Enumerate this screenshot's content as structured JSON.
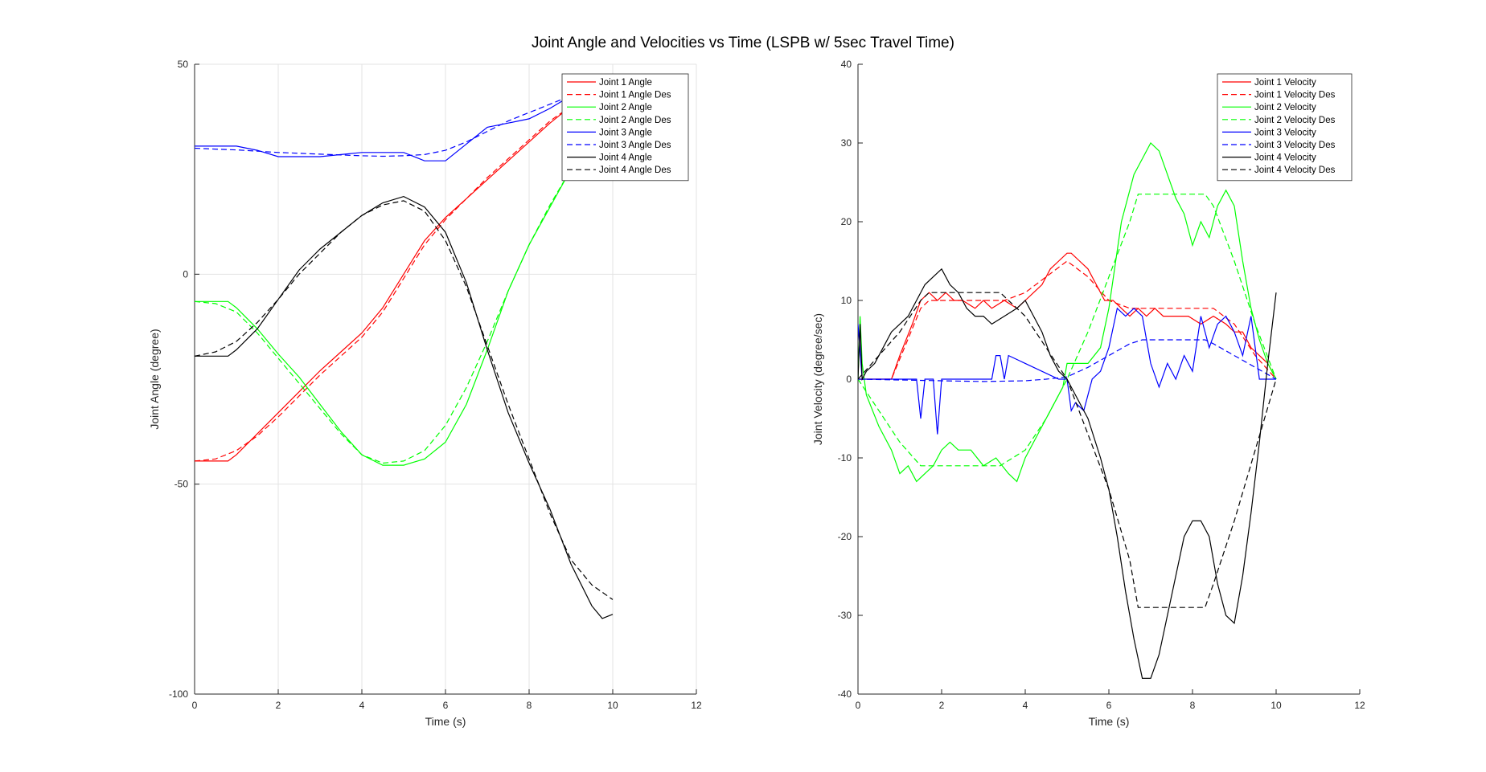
{
  "figure": {
    "title": "Joint Angle and Velocities vs Time (LSPB w/ 5sec Travel Time)"
  },
  "chart_data": [
    {
      "type": "line",
      "xlabel": "Time (s)",
      "ylabel": "Joint Angle (degree)",
      "xlim": [
        0,
        12
      ],
      "ylim": [
        -100,
        50
      ],
      "xticks": [
        "0",
        "2",
        "4",
        "6",
        "8",
        "10",
        "12"
      ],
      "yticks": [
        "-100",
        "-50",
        "0",
        "50"
      ],
      "grid": true,
      "legend_position": "top-right",
      "series": [
        {
          "name": "Joint 1 Angle",
          "color": "#ff0000",
          "dash": "solid",
          "x": [
            0,
            0.8,
            1.0,
            1.5,
            2.0,
            2.5,
            3.0,
            3.5,
            4.0,
            4.5,
            5.0,
            5.5,
            6.0,
            6.5,
            7.0,
            7.5,
            8.0,
            8.5,
            9.0
          ],
          "y": [
            -44.5,
            -44.5,
            -43,
            -38,
            -33,
            -28,
            -23,
            -18.5,
            -14,
            -8,
            0,
            8,
            13.5,
            18,
            22.5,
            27,
            31.5,
            36,
            40
          ]
        },
        {
          "name": "Joint 1 Angle Des",
          "color": "#ff0000",
          "dash": "dashed",
          "x": [
            0,
            0.5,
            1.0,
            1.5,
            2.0,
            2.5,
            3.0,
            3.5,
            4.0,
            4.5,
            5.0,
            5.5,
            6.0,
            6.5,
            7.0,
            7.5,
            8.0,
            8.5,
            9.0
          ],
          "y": [
            -44.5,
            -44,
            -42,
            -38.5,
            -34,
            -29,
            -24,
            -19.5,
            -15,
            -9,
            -1,
            7,
            13,
            18,
            23,
            27.5,
            32,
            36.5,
            40
          ]
        },
        {
          "name": "Joint 2 Angle",
          "color": "#00ff00",
          "dash": "solid",
          "x": [
            0,
            0.8,
            1.0,
            1.5,
            2.0,
            2.5,
            3.0,
            3.5,
            4.0,
            4.5,
            5.0,
            5.5,
            6.0,
            6.5,
            7.0,
            7.5,
            8.0,
            8.5,
            9.0
          ],
          "y": [
            -6.5,
            -6.5,
            -8,
            -13,
            -19,
            -24.5,
            -31,
            -37.5,
            -43,
            -45.5,
            -45.5,
            -44,
            -40,
            -31,
            -18,
            -4,
            7,
            16,
            25
          ]
        },
        {
          "name": "Joint 2 Angle Des",
          "color": "#00ff00",
          "dash": "dashed",
          "x": [
            0,
            0.5,
            1.0,
            1.5,
            2.0,
            2.5,
            3.0,
            3.5,
            4.0,
            4.5,
            5.0,
            5.5,
            6.0,
            6.5,
            7.0,
            7.5,
            8.0,
            8.5,
            9.0
          ],
          "y": [
            -6.5,
            -7,
            -9,
            -14,
            -20,
            -26,
            -32,
            -38,
            -43,
            -45,
            -44.5,
            -42,
            -36,
            -27,
            -16,
            -4,
            7,
            16.5,
            25
          ]
        },
        {
          "name": "Joint 3 Angle",
          "color": "#0000ff",
          "dash": "solid",
          "x": [
            0,
            0.5,
            1.0,
            1.5,
            2.0,
            2.5,
            3.0,
            3.5,
            4.0,
            4.5,
            5.0,
            5.5,
            6.0,
            6.5,
            7.0,
            7.5,
            8.0,
            8.5,
            9.0
          ],
          "y": [
            30.5,
            30.5,
            30.5,
            29.5,
            28,
            28,
            28,
            28.5,
            29,
            29,
            29,
            27,
            27,
            31,
            35,
            36,
            37,
            39.5,
            42.5
          ]
        },
        {
          "name": "Joint 3 Angle Des",
          "color": "#0000ff",
          "dash": "dashed",
          "x": [
            0,
            0.5,
            1.0,
            1.5,
            2.0,
            2.5,
            3.0,
            3.5,
            4.0,
            4.5,
            5.0,
            5.5,
            6.0,
            6.5,
            7.0,
            7.5,
            8.0,
            8.5,
            9.0
          ],
          "y": [
            30,
            29.8,
            29.6,
            29.3,
            29,
            28.8,
            28.6,
            28.4,
            28.2,
            28.1,
            28.2,
            28.5,
            29.5,
            31.5,
            34,
            36.5,
            38.5,
            40.5,
            42.5
          ]
        },
        {
          "name": "Joint 4 Angle",
          "color": "#000000",
          "dash": "solid",
          "x": [
            0,
            0.8,
            1.0,
            1.5,
            2.0,
            2.5,
            3.0,
            3.5,
            4.0,
            4.5,
            5.0,
            5.5,
            6.0,
            6.5,
            7.0,
            7.5,
            8.0,
            8.5,
            9.0,
            9.5,
            9.75,
            10.0
          ],
          "y": [
            -19.5,
            -19.5,
            -18,
            -13,
            -6,
            1,
            6,
            10,
            14,
            17,
            18.5,
            16,
            10,
            -2,
            -18,
            -33,
            -45,
            -56,
            -69,
            -79,
            -82,
            -81
          ]
        },
        {
          "name": "Joint 4 Angle Des",
          "color": "#000000",
          "dash": "dashed",
          "x": [
            0,
            0.5,
            1.0,
            1.5,
            2.0,
            2.5,
            3.0,
            3.5,
            4.0,
            4.5,
            5.0,
            5.5,
            6.0,
            6.5,
            7.0,
            7.5,
            8.0,
            8.5,
            9.0,
            9.5,
            10.0
          ],
          "y": [
            -19.5,
            -18.5,
            -16,
            -11.5,
            -6,
            0,
            5,
            10,
            14,
            16.5,
            17.5,
            15,
            8,
            -3,
            -17,
            -31,
            -44,
            -57,
            -68,
            -74,
            -77.5
          ]
        }
      ]
    },
    {
      "type": "line",
      "xlabel": "Time (s)",
      "ylabel": "Joint Velocity (degree/sec)",
      "xlim": [
        0,
        12
      ],
      "ylim": [
        -40,
        40
      ],
      "xticks": [
        "0",
        "2",
        "4",
        "6",
        "8",
        "10",
        "12"
      ],
      "yticks": [
        "-40",
        "-30",
        "-20",
        "-10",
        "0",
        "10",
        "20",
        "30",
        "40"
      ],
      "grid": false,
      "legend_position": "top-right",
      "series": [
        {
          "name": "Joint 1 Velocity",
          "color": "#ff0000",
          "dash": "solid",
          "x": [
            0,
            0.8,
            1.0,
            1.3,
            1.5,
            1.7,
            1.9,
            2.1,
            2.3,
            2.5,
            2.8,
            3.0,
            3.2,
            3.5,
            3.8,
            4.0,
            4.2,
            4.4,
            4.6,
            4.8,
            5.0,
            5.1,
            5.3,
            5.5,
            5.7,
            5.9,
            6.1,
            6.3,
            6.5,
            6.7,
            6.9,
            7.1,
            7.3,
            7.6,
            7.9,
            8.2,
            8.5,
            8.8,
            9.0,
            9.2,
            9.4,
            9.6,
            9.8,
            10.0
          ],
          "y": [
            0,
            0,
            3,
            7,
            10,
            11,
            10,
            11,
            10,
            10,
            9,
            10,
            9,
            10,
            9,
            10,
            11,
            12,
            14,
            15,
            16,
            16,
            15,
            14,
            12,
            10,
            10,
            9,
            8,
            9,
            8,
            9,
            8,
            8,
            8,
            7,
            8,
            7,
            6,
            6,
            4,
            3,
            2,
            0
          ]
        },
        {
          "name": "Joint 1 Velocity Des",
          "color": "#ff0000",
          "dash": "dashed",
          "x": [
            0,
            0.8,
            1.5,
            1.7,
            2.5,
            3.5,
            4.0,
            4.5,
            5.0,
            5.5,
            6.0,
            6.5,
            7.0,
            7.5,
            8.0,
            8.5,
            9.0,
            9.5,
            10.0
          ],
          "y": [
            0,
            0,
            9,
            10,
            10,
            10,
            11,
            13,
            15,
            13,
            10,
            9,
            9,
            9,
            9,
            9,
            7,
            3,
            0
          ]
        },
        {
          "name": "Joint 2 Velocity",
          "color": "#00ff00",
          "dash": "solid",
          "x": [
            0,
            0.05,
            0.1,
            0.2,
            0.5,
            0.8,
            1.0,
            1.2,
            1.4,
            1.6,
            1.8,
            2.0,
            2.2,
            2.4,
            2.7,
            3.0,
            3.3,
            3.6,
            3.8,
            4.0,
            4.3,
            4.6,
            4.9,
            5.0,
            5.2,
            5.5,
            5.8,
            6.0,
            6.3,
            6.6,
            6.8,
            7.0,
            7.2,
            7.4,
            7.6,
            7.8,
            8.0,
            8.2,
            8.4,
            8.6,
            8.8,
            9.0,
            9.2,
            9.4,
            9.6,
            9.8,
            10.0
          ],
          "y": [
            0,
            8,
            2,
            -2,
            -6,
            -9,
            -12,
            -11,
            -13,
            -12,
            -11,
            -9,
            -8,
            -9,
            -9,
            -11,
            -10,
            -12,
            -13,
            -10,
            -7,
            -4,
            -1,
            2,
            2,
            2,
            4,
            9,
            20,
            26,
            28,
            30,
            29,
            26,
            23,
            21,
            17,
            20,
            18,
            22,
            24,
            22,
            15,
            9,
            5,
            2,
            0
          ]
        },
        {
          "name": "Joint 2 Velocity Des",
          "color": "#00ff00",
          "dash": "dashed",
          "x": [
            0,
            0.5,
            1.0,
            1.5,
            1.7,
            3.0,
            3.4,
            4.0,
            4.5,
            5.0,
            5.5,
            6.0,
            6.5,
            6.7,
            8.3,
            8.5,
            9.0,
            9.5,
            10.0
          ],
          "y": [
            0,
            -4,
            -8,
            -11,
            -11,
            -11,
            -11,
            -9,
            -5,
            0,
            6,
            13,
            20,
            23.5,
            23.5,
            22,
            15,
            7,
            0
          ]
        },
        {
          "name": "Joint 3 Velocity",
          "color": "#0000ff",
          "dash": "solid",
          "x": [
            0,
            0.1,
            1.4,
            1.5,
            1.6,
            1.8,
            1.9,
            2.0,
            3.2,
            3.3,
            3.4,
            3.5,
            3.6,
            4.8,
            5.0,
            5.1,
            5.2,
            5.4,
            5.6,
            5.8,
            6.0,
            6.2,
            6.4,
            6.6,
            6.8,
            7.0,
            7.2,
            7.4,
            7.6,
            7.8,
            8.0,
            8.2,
            8.4,
            8.6,
            8.8,
            9.0,
            9.2,
            9.4,
            9.6,
            10.0
          ],
          "y": [
            7,
            0,
            0,
            -5,
            0,
            0,
            -7,
            0,
            0,
            3,
            3,
            0,
            3,
            0,
            0,
            -4,
            -3,
            -4,
            0,
            1,
            4,
            9,
            8,
            9,
            8,
            2,
            -1,
            2,
            0,
            3,
            1,
            8,
            4,
            7,
            8,
            6,
            3,
            8,
            0,
            0
          ]
        },
        {
          "name": "Joint 3 Velocity Des",
          "color": "#0000ff",
          "dash": "dashed",
          "x": [
            0,
            1.0,
            2.0,
            3.0,
            4.0,
            4.5,
            5.0,
            5.5,
            6.0,
            6.5,
            6.8,
            7.0,
            8.3,
            8.5,
            9.0,
            9.5,
            10.0
          ],
          "y": [
            0,
            -0.1,
            -0.2,
            -0.3,
            -0.2,
            0,
            0.3,
            1.5,
            3,
            4.5,
            5,
            5,
            5,
            4.5,
            3,
            1.5,
            0
          ]
        },
        {
          "name": "Joint 4 Velocity",
          "color": "#000000",
          "dash": "solid",
          "x": [
            0,
            0.05,
            0.1,
            0.2,
            0.4,
            0.6,
            0.8,
            1.0,
            1.2,
            1.4,
            1.6,
            1.8,
            2.0,
            2.2,
            2.4,
            2.6,
            2.8,
            3.0,
            3.2,
            3.5,
            3.8,
            4.0,
            4.2,
            4.4,
            4.6,
            4.8,
            5.0,
            5.2,
            5.5,
            5.8,
            6.0,
            6.2,
            6.4,
            6.6,
            6.8,
            7.0,
            7.2,
            7.4,
            7.6,
            7.8,
            8.0,
            8.2,
            8.4,
            8.6,
            8.8,
            9.0,
            9.2,
            9.4,
            9.6,
            9.8,
            10.0
          ],
          "y": [
            0,
            7,
            0,
            1,
            2,
            4,
            6,
            7,
            8,
            10,
            12,
            13,
            14,
            12,
            11,
            9,
            8,
            8,
            7,
            8,
            9,
            10,
            8,
            6,
            3,
            1,
            0,
            -2,
            -5,
            -10,
            -14,
            -20,
            -27,
            -33,
            -38,
            -38,
            -35,
            -30,
            -25,
            -20,
            -18,
            -18,
            -20,
            -26,
            -30,
            -31,
            -25,
            -17,
            -8,
            2,
            11
          ]
        },
        {
          "name": "Joint 4 Velocity Des",
          "color": "#000000",
          "dash": "dashed",
          "x": [
            0,
            0.5,
            1.0,
            1.5,
            1.7,
            3.0,
            3.4,
            4.0,
            4.5,
            5.0,
            5.5,
            6.0,
            6.5,
            6.7,
            8.3,
            8.5,
            9.0,
            9.5,
            10.0
          ],
          "y": [
            0,
            3,
            6,
            10,
            11,
            11,
            11,
            8,
            4,
            0,
            -7,
            -14,
            -23,
            -29,
            -29,
            -26,
            -18,
            -9,
            0
          ]
        }
      ]
    }
  ]
}
